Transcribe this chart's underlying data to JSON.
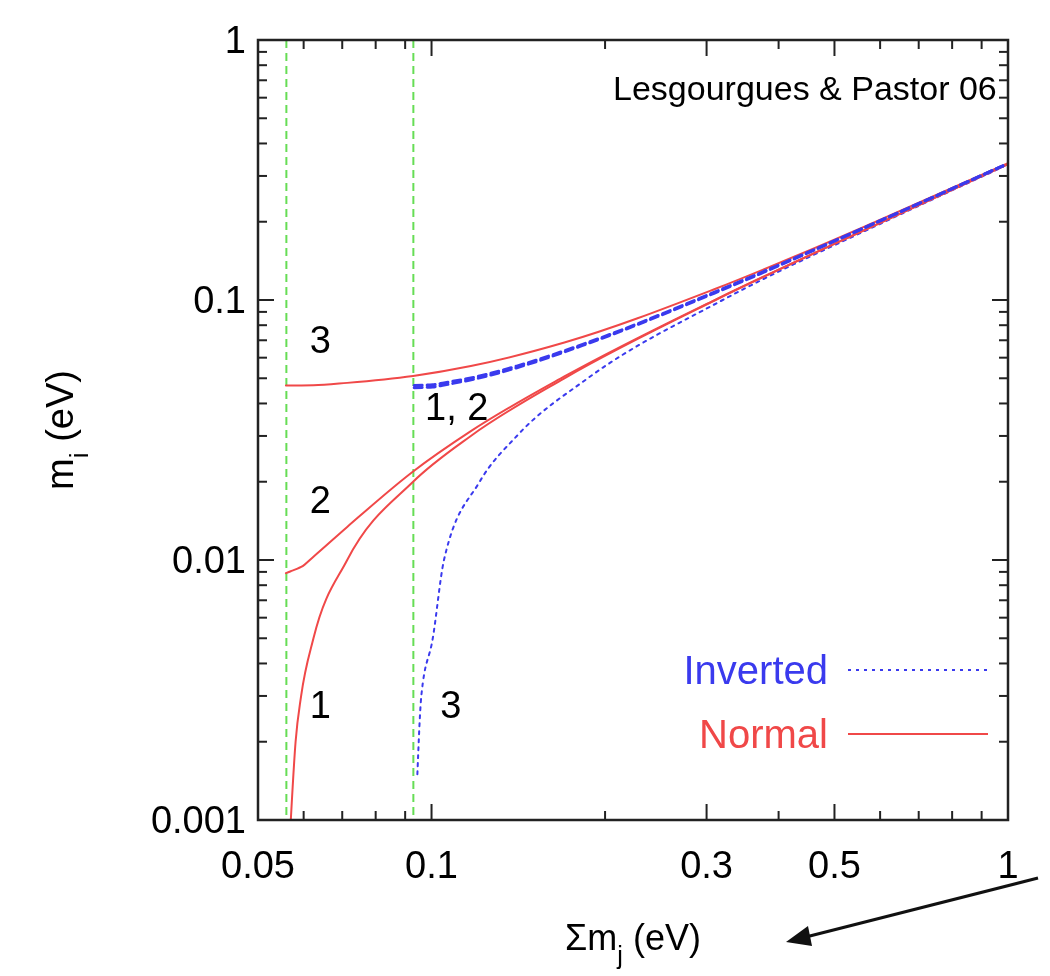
{
  "chart_data": {
    "type": "line",
    "xlabel": "Σm$_{j}$ (eV)",
    "ylabel": "m$_{i}$ (eV)",
    "log": "xy",
    "xlim": [
      0.05,
      1
    ],
    "ylim": [
      0.001,
      1
    ],
    "xticks": [
      0.05,
      {
        "value": 0.06,
        "label": null
      },
      {
        "value": 0.07,
        "label": null
      },
      {
        "value": 0.08,
        "label": null
      },
      {
        "value": 0.09,
        "label": null
      },
      0.1,
      {
        "value": 0.2,
        "label": null
      },
      0.3,
      {
        "value": 0.4,
        "label": null
      },
      0.5,
      {
        "value": 0.6,
        "label": null
      },
      {
        "value": 0.7,
        "label": null
      },
      {
        "value": 0.8,
        "label": null
      },
      {
        "value": 0.9,
        "label": null
      },
      1
    ],
    "yticks": [
      0.001,
      {
        "value": 0.002,
        "label": null
      },
      {
        "value": 0.003,
        "label": null
      },
      {
        "value": 0.004,
        "label": null
      },
      {
        "value": 0.005,
        "label": null
      },
      {
        "value": 0.006,
        "label": null
      },
      {
        "value": 0.007,
        "label": null
      },
      {
        "value": 0.008,
        "label": null
      },
      {
        "value": 0.009,
        "label": null
      },
      0.01,
      {
        "value": 0.02,
        "label": null
      },
      {
        "value": 0.03,
        "label": null
      },
      {
        "value": 0.04,
        "label": null
      },
      {
        "value": 0.05,
        "label": null
      },
      {
        "value": 0.06,
        "label": null
      },
      {
        "value": 0.07,
        "label": null
      },
      {
        "value": 0.08,
        "label": null
      },
      {
        "value": 0.09,
        "label": null
      },
      0.1,
      {
        "value": 0.2,
        "label": null
      },
      {
        "value": 0.3,
        "label": null
      },
      {
        "value": 0.4,
        "label": null
      },
      {
        "value": 0.5,
        "label": null
      },
      {
        "value": 0.6,
        "label": null
      },
      {
        "value": 0.7,
        "label": null
      },
      {
        "value": 0.8,
        "label": null
      },
      {
        "value": 0.9,
        "label": null
      },
      1
    ],
    "grid": false,
    "legend": "bottom right",
    "series": [
      {
        "name": "Inverted",
        "color": "#3a3aee",
        "line_style": "dotted",
        "x": [
          0.0945,
          0.096,
          0.1005,
          0.1051,
          0.1212,
          0.1406,
          0.1866,
          0.32,
          0.611,
          0.98
        ],
        "values": [
          0.0015,
          0.003,
          0.005,
          0.01,
          0.02,
          0.03,
          0.05,
          0.1,
          0.2,
          0.325
        ]
      },
      {
        "name": "Normal",
        "color": "#f04848",
        "line_style": "solid",
        "x": [
          0.057,
          0.0581,
          0.0594,
          0.0624,
          0.0714,
          0.0929,
          0.117,
          0.17,
          0.311,
          0.606,
          1
        ],
        "values": [
          0.001,
          0.002,
          0.003,
          0.005,
          0.01,
          0.02,
          0.03,
          0.05,
          0.1,
          0.2,
          0.333
        ]
      },
      {
        "color": "#f04848",
        "line_style": "solid",
        "x": [
          0.0559,
          0.057,
          0.0581,
          0.0594,
          0.0624,
          0.0714,
          0.0929,
          0.117,
          0.17,
          0.311,
          0.606,
          1
        ],
        "values": [
          0.0089,
          0.00905,
          0.0092,
          0.0094,
          0.0103,
          0.0134,
          0.0219,
          0.0313,
          0.0508,
          0.1004,
          0.2002,
          0.333
        ]
      },
      {
        "color": "#f04848",
        "line_style": "solid",
        "x": [
          0.0559,
          0.0624,
          0.0714,
          0.0929,
          0.117,
          0.17,
          0.311,
          0.606,
          1
        ],
        "values": [
          0.0469,
          0.047,
          0.048,
          0.051,
          0.0557,
          0.0686,
          0.1105,
          0.2055,
          0.336
        ]
      },
      {
        "color": "#3a3aee",
        "line_style": "dashed",
        "x": [
          0.0933,
          0.1005,
          0.1051,
          0.1212,
          0.1406,
          0.1866,
          0.32,
          0.611,
          0.98
        ],
        "values": [
          0.046,
          0.0463,
          0.0471,
          0.0502,
          0.0549,
          0.068,
          0.1096,
          0.2052,
          0.3282
        ]
      },
      {
        "color": "#3a3aee",
        "line_style": "dashed",
        "x": [
          0.0933,
          0.1005,
          0.1051,
          0.1212,
          0.1406,
          0.1866,
          0.32,
          0.611,
          0.98
        ],
        "values": [
          0.0469,
          0.0472,
          0.048,
          0.051,
          0.0557,
          0.0686,
          0.1105,
          0.2055,
          0.3283
        ]
      }
    ],
    "ref_lines": [
      {
        "axis": "x",
        "value": 0.056,
        "color": "#66dd55",
        "line_style": "dashed"
      },
      {
        "axis": "x",
        "value": 0.093,
        "color": "#66dd55",
        "line_style": "dashed"
      }
    ],
    "annotations": [
      "Lesgourgues & Pastor 06",
      "3",
      "2",
      "1",
      "1, 2",
      "3"
    ]
  }
}
